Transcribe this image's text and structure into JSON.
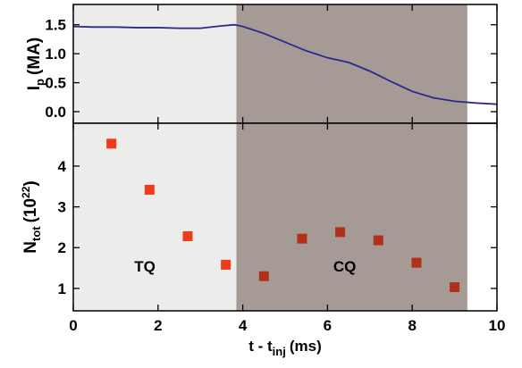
{
  "chart_data": [
    {
      "type": "line",
      "y_label": {
        "main": "I",
        "sub": "p",
        "unit": "(MA)"
      },
      "xlim": [
        0,
        10
      ],
      "ylim": [
        -0.2,
        1.85
      ],
      "yticks": [
        {
          "value": 0,
          "label": "0.0"
        },
        0.5,
        {
          "value": 1,
          "label": "1.0"
        },
        1.5
      ],
      "regions": [
        {
          "xlim": [
            0,
            3.85
          ],
          "color": "#ececea"
        },
        {
          "xlim": [
            3.85,
            9.3
          ],
          "color": "#a59a96"
        }
      ],
      "series": [
        {
          "color": "#2a2a8c",
          "x": [
            0,
            0.5,
            1,
            1.5,
            2,
            2.5,
            3,
            3.5,
            3.8,
            4,
            4.5,
            5,
            5.5,
            6,
            6.5,
            7,
            7.5,
            8,
            8.5,
            9,
            9.5,
            10
          ],
          "values": [
            1.47,
            1.46,
            1.46,
            1.45,
            1.45,
            1.44,
            1.44,
            1.48,
            1.5,
            1.47,
            1.35,
            1.2,
            1.05,
            0.93,
            0.85,
            0.7,
            0.52,
            0.35,
            0.24,
            0.18,
            0.15,
            0.13
          ]
        }
      ]
    },
    {
      "type": "scatter",
      "y_label": {
        "main": "N",
        "sub": "tot",
        "unit": "(10",
        "sup": "22",
        "close": ")"
      },
      "x_label": {
        "main": "t - t",
        "sub": "inj",
        "unit": "(ms)"
      },
      "xlim": [
        0,
        10
      ],
      "ylim": [
        0.45,
        5.05
      ],
      "xticks": [
        0,
        2,
        4,
        6,
        8,
        10
      ],
      "yticks": [
        1,
        2,
        3,
        4
      ],
      "regions": [
        {
          "xlim": [
            0,
            3.85
          ],
          "color": "#ececea",
          "label": "TQ"
        },
        {
          "xlim": [
            3.85,
            9.3
          ],
          "color": "#a59a96",
          "label": "CQ"
        }
      ],
      "series": [
        {
          "color": "#f03a1a",
          "x": [
            0.9,
            1.8,
            2.7,
            3.6
          ],
          "values": [
            4.55,
            3.42,
            2.28,
            1.58
          ]
        },
        {
          "color": "#b0301a",
          "x": [
            4.5,
            5.4,
            6.3,
            7.2,
            8.1,
            9.0
          ],
          "values": [
            1.3,
            2.22,
            2.38,
            2.18,
            1.63,
            1.03
          ]
        }
      ]
    }
  ]
}
